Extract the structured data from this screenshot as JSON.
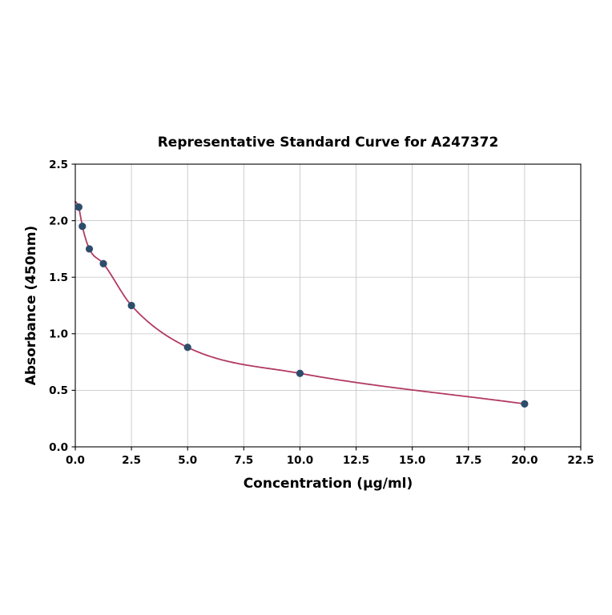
{
  "chart_data": {
    "type": "scatter",
    "title": "Representative Standard Curve for A247372",
    "xlabel": "Concentration (µg/ml)",
    "ylabel": "Absorbance (450nm)",
    "xlim": [
      0,
      22.5
    ],
    "ylim": [
      0,
      2.5
    ],
    "x_ticks": [
      "0.0",
      "2.5",
      "5.0",
      "7.5",
      "10.0",
      "12.5",
      "15.0",
      "17.5",
      "20.0",
      "22.5"
    ],
    "y_ticks": [
      "0.0",
      "0.5",
      "1.0",
      "1.5",
      "2.0",
      "2.5"
    ],
    "grid": true,
    "points": [
      {
        "x": 0.156,
        "y": 2.12
      },
      {
        "x": 0.313,
        "y": 1.95
      },
      {
        "x": 0.625,
        "y": 1.75
      },
      {
        "x": 1.25,
        "y": 1.62
      },
      {
        "x": 2.5,
        "y": 1.25
      },
      {
        "x": 5.0,
        "y": 0.88
      },
      {
        "x": 10.0,
        "y": 0.65
      },
      {
        "x": 20.0,
        "y": 0.38
      }
    ],
    "fit_curve": {
      "kind": "smooth-through-points",
      "start_anchor": {
        "x": 0,
        "y": 2.17
      },
      "end_x": 20.0
    },
    "colors": {
      "point": "#2e4d6b",
      "curve": "#b23a60",
      "grid": "#c9c9c9",
      "axis": "#000000",
      "text": "#000000",
      "background": "#ffffff"
    },
    "legend": null
  }
}
